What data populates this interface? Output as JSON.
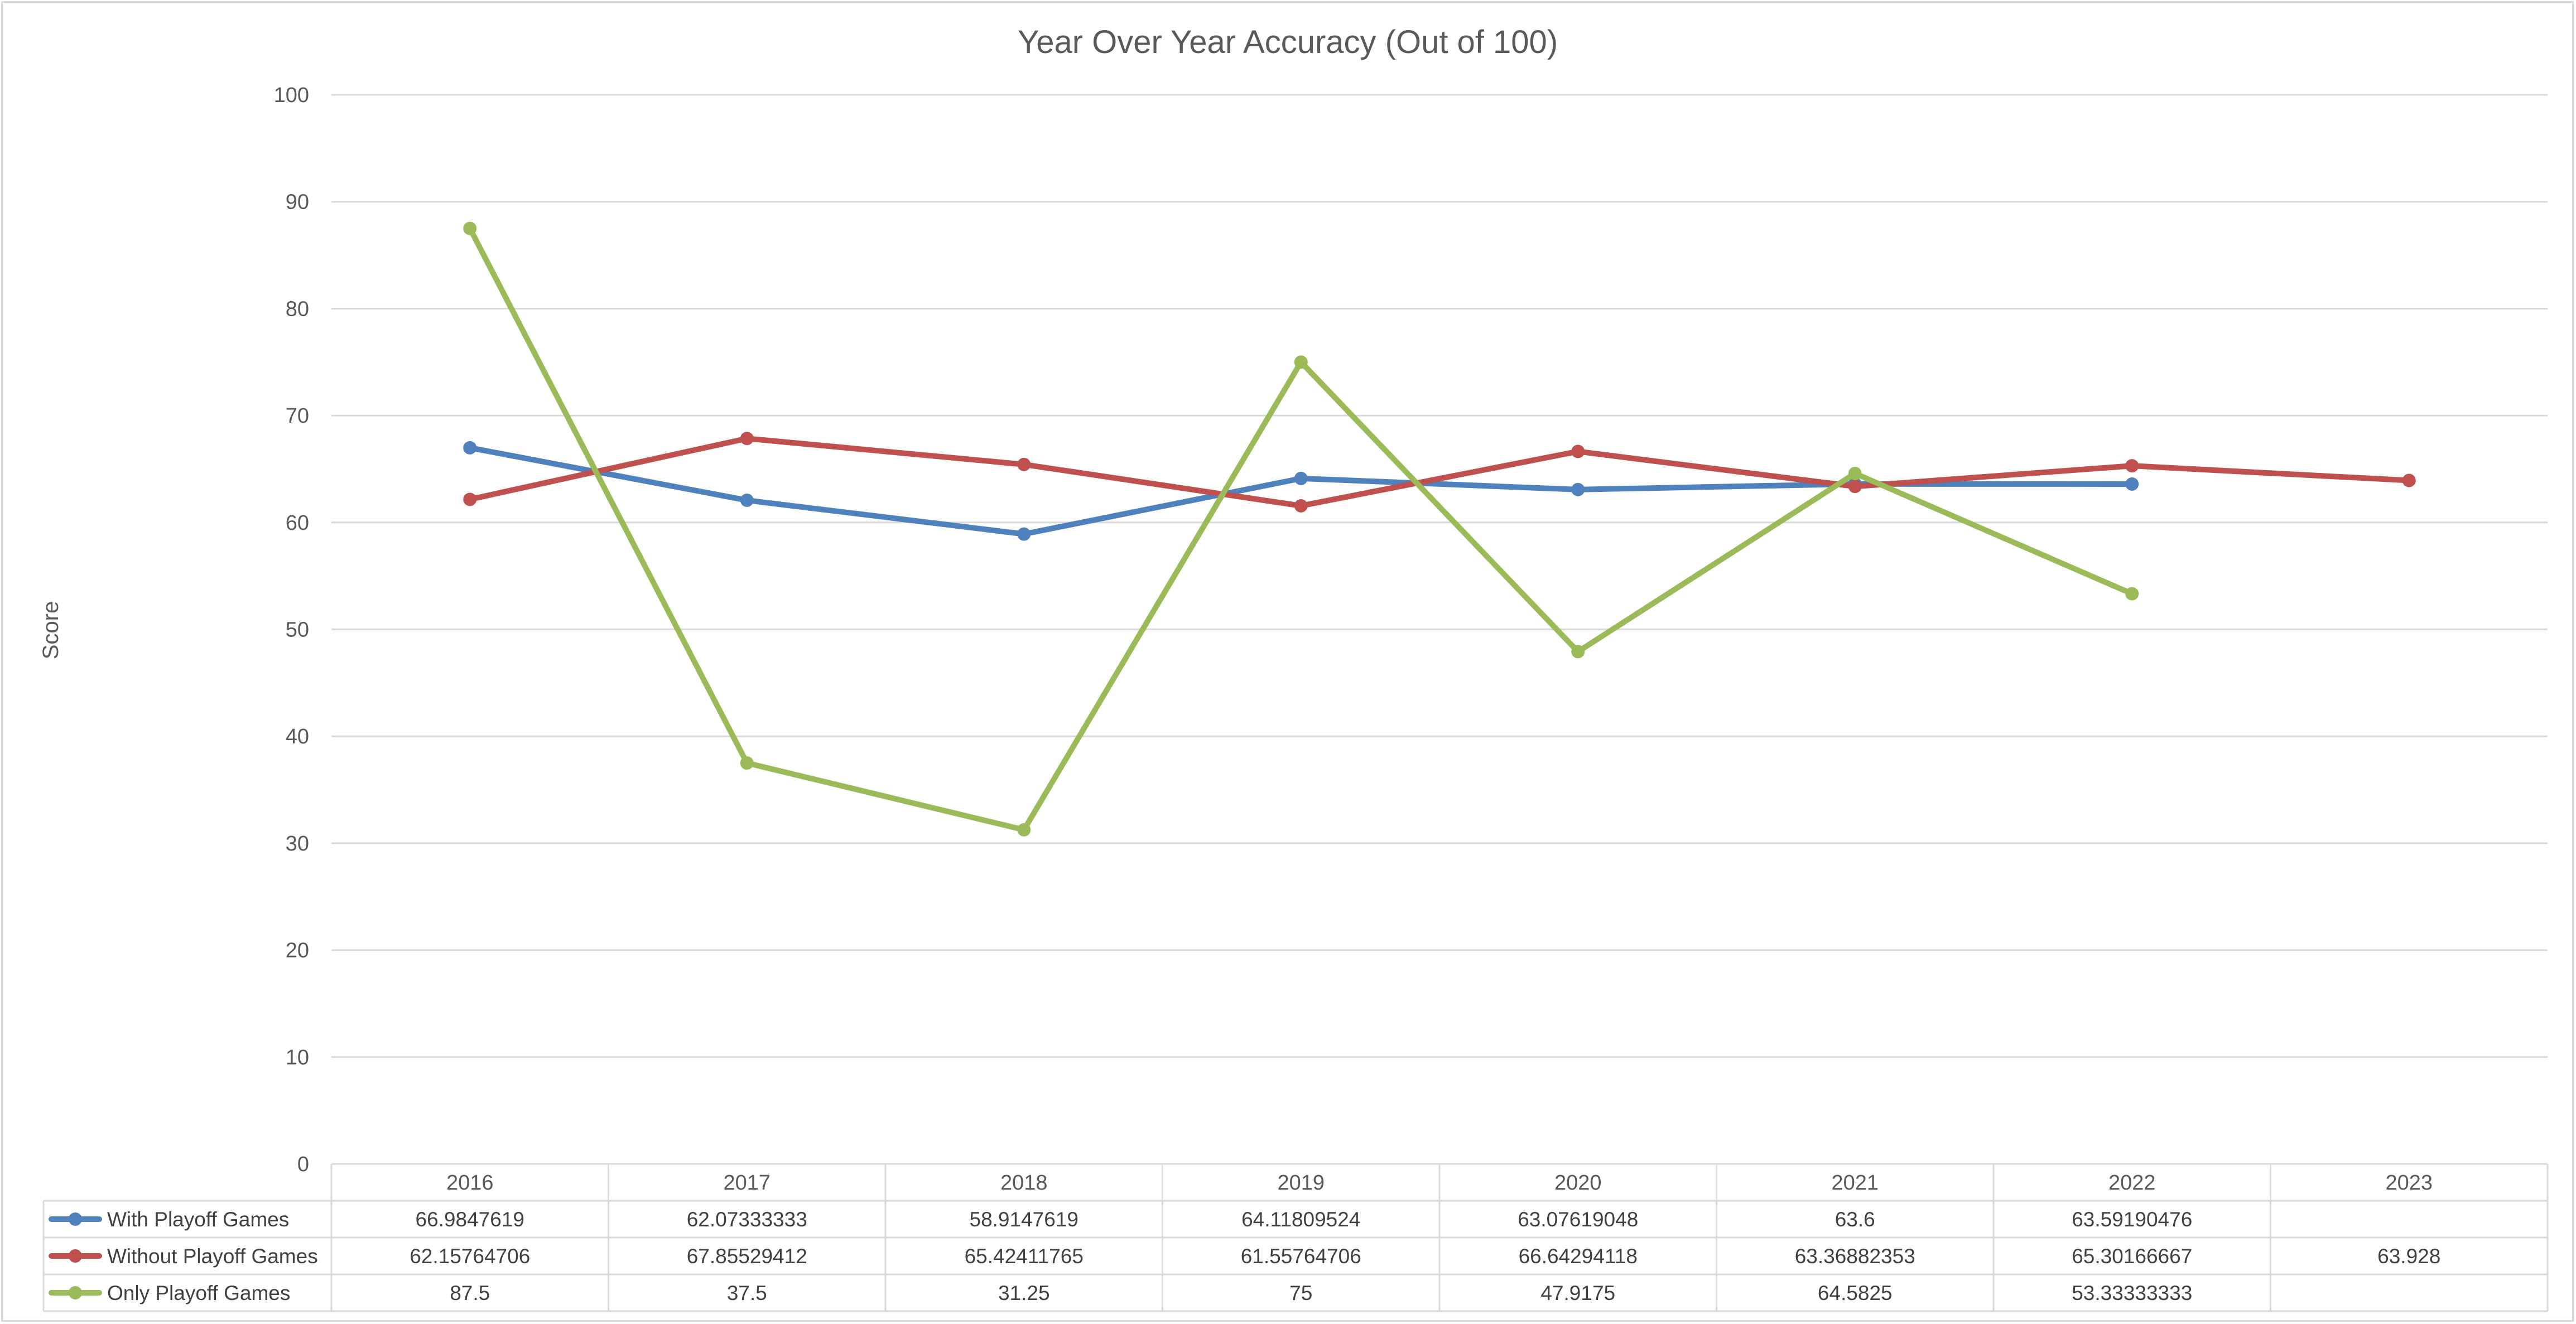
{
  "chart_data": {
    "type": "line",
    "title": "Year Over Year Accuracy (Out of 100)",
    "xlabel": "",
    "ylabel": "Score",
    "ylim": [
      0,
      100
    ],
    "yticks": [
      0,
      10,
      20,
      30,
      40,
      50,
      60,
      70,
      80,
      90,
      100
    ],
    "grid": true,
    "legend": "data-table",
    "categories": [
      "2016",
      "2017",
      "2018",
      "2019",
      "2020",
      "2021",
      "2022",
      "2023"
    ],
    "series": [
      {
        "name": "With Playoff Games",
        "color": "#4f81bd",
        "values": [
          66.9847619,
          62.07333333,
          58.9147619,
          64.11809524,
          63.07619048,
          63.6,
          63.59190476,
          null
        ],
        "labels": [
          "66.9847619",
          "62.07333333",
          "58.9147619",
          "64.11809524",
          "63.07619048",
          "63.6",
          "63.59190476",
          ""
        ]
      },
      {
        "name": "Without Playoff Games",
        "color": "#c0504d",
        "values": [
          62.15764706,
          67.85529412,
          65.42411765,
          61.55764706,
          66.64294118,
          63.36882353,
          65.30166667,
          63.928
        ],
        "labels": [
          "62.15764706",
          "67.85529412",
          "65.42411765",
          "61.55764706",
          "66.64294118",
          "63.36882353",
          "65.30166667",
          "63.928"
        ]
      },
      {
        "name": "Only Playoff Games",
        "color": "#9bbb59",
        "values": [
          87.5,
          37.5,
          31.25,
          75,
          47.9175,
          64.5825,
          53.33333333,
          null
        ],
        "labels": [
          "87.5",
          "37.5",
          "31.25",
          "75",
          "47.9175",
          "64.5825",
          "53.33333333",
          ""
        ]
      }
    ]
  }
}
